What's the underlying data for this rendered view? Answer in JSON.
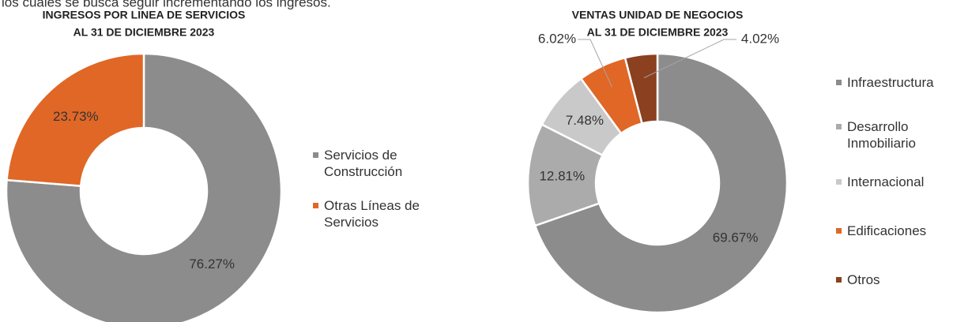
{
  "intro_text": "los cuales se busca seguir incrementando los ingresos.",
  "chart_data": [
    {
      "type": "donut",
      "title": "INGRESOS POR LINEA DE  SERVICIOS",
      "subtitle": "AL 31 DE DICIEMBRE 2023",
      "categories": [
        "Servicios de Construcción",
        "Otras Líneas de Servicios"
      ],
      "values": [
        76.27,
        23.73
      ],
      "value_labels": [
        "76.27%",
        "23.73%"
      ],
      "colors": [
        "#8c8c8c",
        "#e06726"
      ]
    },
    {
      "type": "donut",
      "title": "VENTAS UNIDAD DE NEGOCIOS",
      "subtitle": "AL 31 DE DICIEMBRE 2023",
      "categories": [
        "Infraestructura",
        "Desarrollo Inmobiliario",
        "Internacional",
        "Edificaciones",
        "Otros"
      ],
      "values": [
        69.67,
        12.81,
        7.48,
        6.02,
        4.02
      ],
      "value_labels": [
        "69.67%",
        "12.81%",
        "7.48%",
        "6.02%",
        "4.02%"
      ],
      "colors": [
        "#8c8c8c",
        "#ababab",
        "#c9c9c9",
        "#e06726",
        "#8b4020"
      ]
    }
  ]
}
